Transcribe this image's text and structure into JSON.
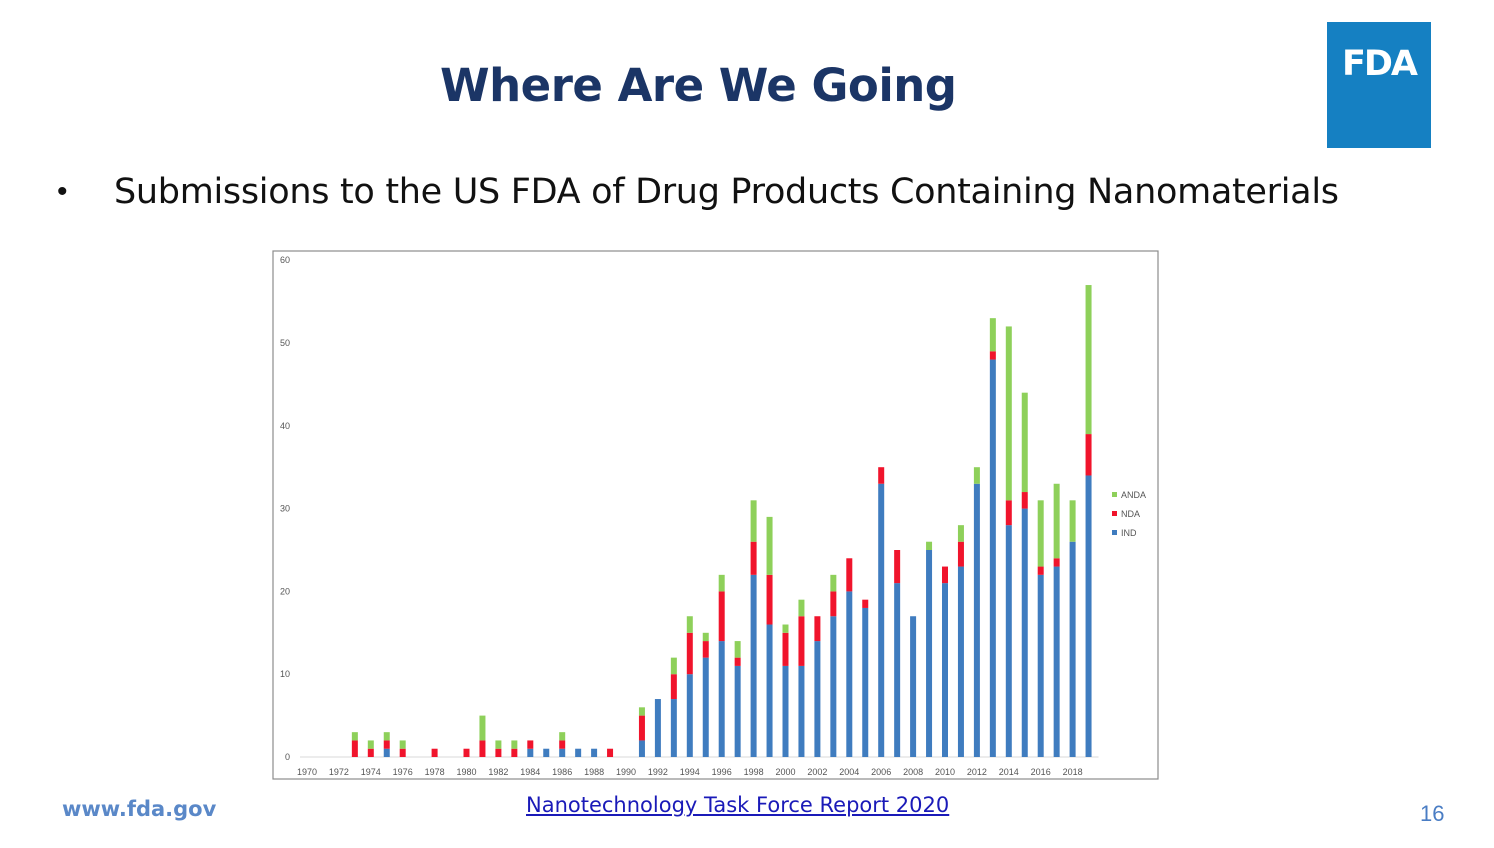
{
  "slide": {
    "title": "Where Are We Going",
    "bullet_symbol": "•",
    "bullet": "Submissions to the US FDA of Drug Products Containing Nanomaterials",
    "footer_url": "www.fda.gov",
    "footer_link": "Nanotechnology Task Force Report 2020",
    "page_number": "16"
  },
  "logo": {
    "text": "FDA",
    "color": "#1580c2"
  },
  "chart_data": {
    "type": "bar",
    "stacked": true,
    "categories": [
      "1970",
      "1971",
      "1972",
      "1973",
      "1974",
      "1975",
      "1976",
      "1977",
      "1978",
      "1979",
      "1980",
      "1981",
      "1982",
      "1983",
      "1984",
      "1985",
      "1986",
      "1987",
      "1988",
      "1989",
      "1990",
      "1991",
      "1992",
      "1993",
      "1994",
      "1995",
      "1996",
      "1997",
      "1998",
      "1999",
      "2000",
      "2001",
      "2002",
      "2003",
      "2004",
      "2005",
      "2006",
      "2007",
      "2008",
      "2009",
      "2010",
      "2011",
      "2012",
      "2013",
      "2014",
      "2015",
      "2016",
      "2017",
      "2018",
      "2019"
    ],
    "x_tick_labels": [
      "1970",
      "1972",
      "1974",
      "1976",
      "1978",
      "1980",
      "1982",
      "1984",
      "1986",
      "1988",
      "1990",
      "1992",
      "1994",
      "1996",
      "1998",
      "2000",
      "2002",
      "2004",
      "2006",
      "2008",
      "2010",
      "2012",
      "2014",
      "2016",
      "2018"
    ],
    "y_ticks": [
      0,
      10,
      20,
      30,
      40,
      50,
      60
    ],
    "ylim": [
      0,
      60
    ],
    "grid": false,
    "legend_position": "right",
    "series": [
      {
        "name": "IND",
        "color": "#3f7cbf",
        "values": [
          0,
          0,
          0,
          0,
          0,
          1,
          0,
          0,
          0,
          0,
          0,
          0,
          0,
          0,
          1,
          1,
          1,
          1,
          1,
          0,
          0,
          2,
          7,
          7,
          10,
          12,
          14,
          11,
          22,
          16,
          11,
          11,
          14,
          17,
          20,
          18,
          33,
          21,
          17,
          25,
          21,
          23,
          33,
          48,
          28,
          30,
          22,
          23,
          26,
          34
        ]
      },
      {
        "name": "NDA",
        "color": "#f0142c",
        "values": [
          0,
          0,
          0,
          2,
          1,
          1,
          1,
          0,
          1,
          0,
          1,
          2,
          1,
          1,
          1,
          0,
          1,
          0,
          0,
          1,
          0,
          3,
          0,
          3,
          5,
          2,
          6,
          1,
          4,
          6,
          4,
          6,
          3,
          3,
          4,
          1,
          2,
          4,
          0,
          0,
          2,
          3,
          0,
          1,
          3,
          2,
          1,
          1,
          0,
          5
        ]
      },
      {
        "name": "ANDA",
        "color": "#8ed05a",
        "values": [
          0,
          0,
          0,
          1,
          1,
          1,
          1,
          0,
          0,
          0,
          0,
          3,
          1,
          1,
          0,
          0,
          1,
          0,
          0,
          0,
          0,
          1,
          0,
          2,
          2,
          1,
          2,
          2,
          5,
          7,
          1,
          2,
          0,
          2,
          0,
          0,
          0,
          0,
          0,
          1,
          0,
          2,
          2,
          4,
          21,
          12,
          8,
          9,
          5,
          18
        ]
      }
    ]
  }
}
